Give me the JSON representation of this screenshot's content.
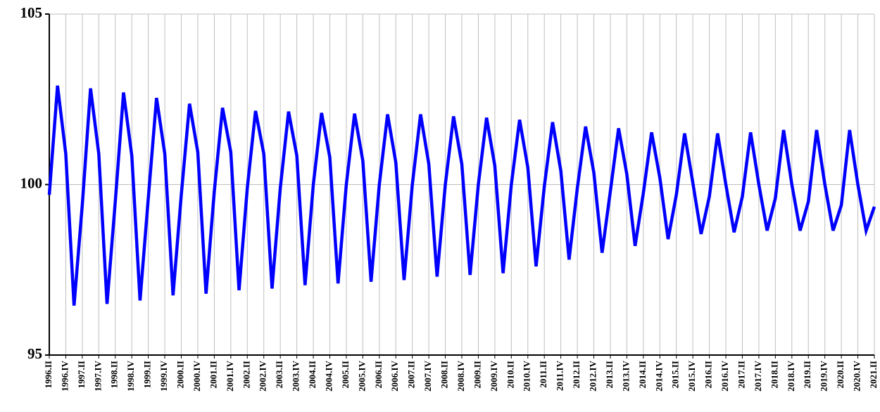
{
  "chart_data": {
    "type": "line",
    "categories": [
      "1996.II",
      null,
      "1996.IV",
      null,
      "1997.II",
      null,
      "1997.IV",
      null,
      "1998.II",
      null,
      "1998.IV",
      null,
      "1999.II",
      null,
      "1999.IV",
      null,
      "2000.II",
      null,
      "2000.IV",
      null,
      "2001.II",
      null,
      "2001.IV",
      null,
      "2002.II",
      null,
      "2002.IV",
      null,
      "2003.II",
      null,
      "2003.IV",
      null,
      "2004.II",
      null,
      "2004.IV",
      null,
      "2005.II",
      null,
      "2005.IV",
      null,
      "2006.II",
      null,
      "2006.IV",
      null,
      "2007.II",
      null,
      "2007.IV",
      null,
      "2008.II",
      null,
      "2008.IV",
      null,
      "2009.II",
      null,
      "2009.IV",
      null,
      "2010.II",
      null,
      "2010.IV",
      null,
      "2011.II",
      null,
      "2011.IV",
      null,
      "2012.II",
      null,
      "2012.IV",
      null,
      "2013.II",
      null,
      "2013.IV",
      null,
      "2014.II",
      null,
      "2014.IV",
      null,
      "2015.II",
      null,
      "2015.IV",
      null,
      "2016.II",
      null,
      "2016.IV",
      null,
      "2017.II",
      null,
      "2017.IV",
      null,
      "2018.II",
      null,
      "2018.IV",
      null,
      "2019.II",
      null,
      "2019.IV",
      null,
      "2020.II",
      null,
      "2020.IV",
      null,
      "2021.II"
    ],
    "values": [
      99.7,
      102.9,
      100.9,
      96.45,
      99.4,
      102.82,
      100.9,
      96.5,
      99.5,
      102.7,
      100.85,
      96.6,
      99.6,
      102.54,
      100.9,
      96.75,
      99.7,
      102.37,
      100.95,
      96.8,
      99.8,
      102.25,
      100.95,
      96.9,
      99.9,
      102.16,
      100.9,
      96.95,
      99.9,
      102.14,
      100.85,
      97.05,
      100.0,
      102.1,
      100.8,
      97.1,
      100.0,
      102.08,
      100.7,
      97.15,
      100.0,
      102.06,
      100.65,
      97.2,
      100.0,
      102.06,
      100.6,
      97.3,
      100.0,
      102.0,
      100.6,
      97.35,
      100.0,
      101.96,
      100.55,
      97.4,
      100.0,
      101.9,
      100.5,
      97.6,
      99.95,
      101.83,
      100.4,
      97.8,
      99.9,
      101.7,
      100.35,
      98.0,
      99.8,
      101.65,
      100.3,
      98.2,
      99.75,
      101.53,
      100.2,
      98.4,
      99.7,
      101.5,
      100.05,
      98.55,
      99.65,
      101.5,
      100.0,
      98.6,
      99.65,
      101.53,
      100.0,
      98.65,
      99.6,
      101.6,
      100.0,
      98.65,
      99.5,
      101.6,
      100.0,
      98.65,
      99.4,
      101.6,
      100.0,
      98.65,
      99.35
    ],
    "color": "#0000ff",
    "ylim": [
      95,
      105
    ],
    "yticks": [
      95,
      100,
      105
    ],
    "grid": true
  }
}
